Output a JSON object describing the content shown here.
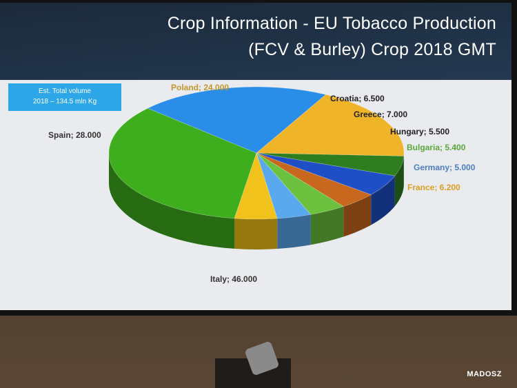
{
  "title": {
    "line1": "Crop Information - EU Tobacco Production",
    "line2": "(FCV & Burley) Crop 2018 GMT"
  },
  "volume_box": {
    "line1": "Est. Total volume",
    "line2": "2018 – 134.5 mln Kg"
  },
  "watermark": "MADOSZ",
  "chart_data": {
    "type": "pie",
    "style": "3d",
    "categories": [
      "Poland",
      "Croatia",
      "Greece",
      "Hungary",
      "Bulgaria",
      "Germany",
      "France",
      "Italy",
      "Spain"
    ],
    "values": [
      24.0,
      6.5,
      7.0,
      5.5,
      5.4,
      5.0,
      6.2,
      46.0,
      28.0
    ],
    "labels": [
      "Poland; 24.000",
      "Croatia; 6.500",
      "Greece; 7.000",
      "Hungary; 5.500",
      "Bulgaria; 5.400",
      "Germany; 5.000",
      "France; 6.200",
      "Italy; 46.000",
      "Spain; 28.000"
    ],
    "colors": [
      "#f0b428",
      "#2e7d1e",
      "#1f4fc6",
      "#c8681e",
      "#6cc23e",
      "#5aa8ee",
      "#f2c21c",
      "#3fae1e",
      "#2a8ee8"
    ],
    "label_colors": [
      "#c4962a",
      "#222222",
      "#222222",
      "#222222",
      "#5aa83a",
      "#4a7ec2",
      "#d9a021",
      "#333333",
      "#333333"
    ]
  }
}
